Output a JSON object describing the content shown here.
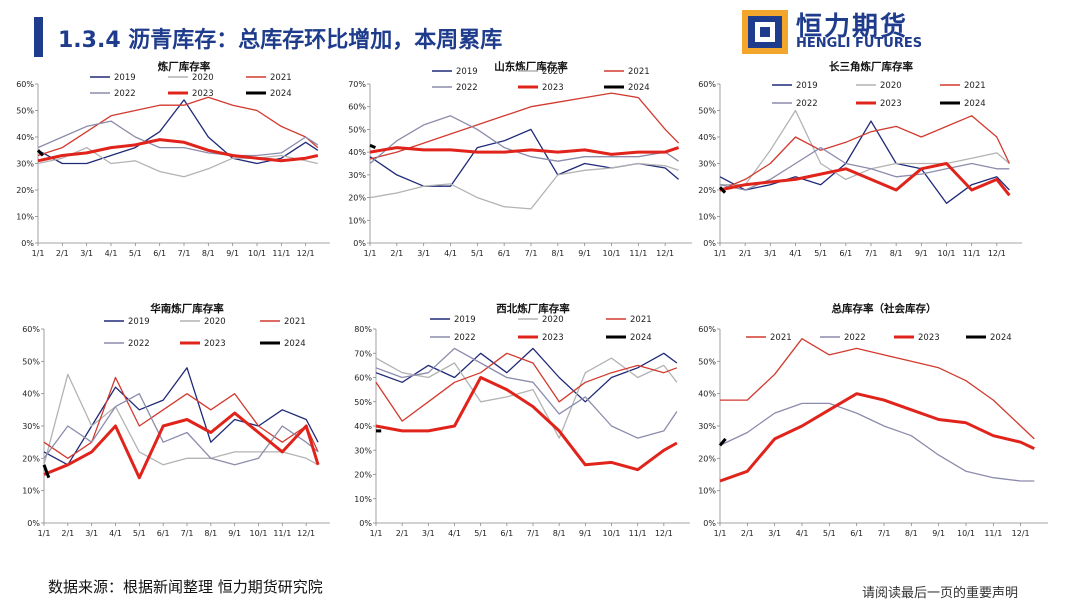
{
  "header": {
    "title": "1.3.4 沥青库存：总库存环比增加，本周累库"
  },
  "brand": {
    "name_cn": "恒力期货",
    "name_en": "HENGLI FUTURES",
    "primary_color": "#1f3c8c",
    "accent_color": "#f2a62c"
  },
  "footer": {
    "source": "数据来源：根据新闻整理 恒力期货研究院",
    "note": "请阅读最后一页的重要声明"
  },
  "series_colors": {
    "2019": "#1f2a78",
    "2020": "#b3b3b3",
    "2021": "#d23a2f",
    "2022": "#8c8cac",
    "2023": "#e0241b",
    "2024": "#000000"
  },
  "chart_data": [
    {
      "type": "line",
      "title": "炼厂库存率",
      "xticks": [
        "1/1",
        "2/1",
        "3/1",
        "4/1",
        "5/1",
        "6/1",
        "7/1",
        "8/1",
        "9/1",
        "10/1",
        "11/1",
        "12/1"
      ],
      "ylim": [
        0,
        60
      ],
      "yticks": [
        0,
        10,
        20,
        30,
        40,
        50,
        60
      ],
      "yunit": "%",
      "series": [
        {
          "name": "2019",
          "x": [
            1,
            2,
            3,
            4,
            5,
            6,
            7,
            8,
            9,
            10,
            11,
            12,
            12.5
          ],
          "values": [
            35,
            30,
            30,
            33,
            36,
            42,
            54,
            40,
            32,
            30,
            32,
            38,
            35
          ]
        },
        {
          "name": "2020",
          "x": [
            1,
            2,
            3,
            4,
            5,
            6,
            7,
            8,
            9,
            10,
            11,
            12,
            12.5
          ],
          "values": [
            30,
            32,
            36,
            30,
            31,
            27,
            25,
            28,
            32,
            32,
            33,
            31,
            30
          ]
        },
        {
          "name": "2021",
          "x": [
            1,
            2,
            3,
            4,
            5,
            6,
            7,
            8,
            9,
            10,
            11,
            12,
            12.5
          ],
          "values": [
            33,
            36,
            42,
            48,
            50,
            52,
            52,
            55,
            52,
            50,
            44,
            40,
            36
          ]
        },
        {
          "name": "2022",
          "x": [
            1,
            2,
            3,
            4,
            5,
            6,
            7,
            8,
            9,
            10,
            11,
            12,
            12.5
          ],
          "values": [
            36,
            40,
            44,
            46,
            40,
            36,
            36,
            34,
            33,
            33,
            34,
            40,
            37
          ]
        },
        {
          "name": "2023",
          "x": [
            1,
            2,
            3,
            4,
            5,
            6,
            7,
            8,
            9,
            10,
            11,
            12,
            12.5
          ],
          "values": [
            31,
            33,
            34,
            36,
            37,
            39,
            38,
            35,
            33,
            32,
            31,
            32,
            33
          ]
        },
        {
          "name": "2024",
          "x": [
            1,
            1.2
          ],
          "values": [
            35,
            33
          ]
        }
      ]
    },
    {
      "type": "line",
      "title": "山东炼厂库存率",
      "xticks": [
        "1/1",
        "2/1",
        "3/1",
        "4/1",
        "5/1",
        "6/1",
        "7/1",
        "8/1",
        "9/1",
        "10/1",
        "11/1",
        "12/1"
      ],
      "ylim": [
        0,
        70
      ],
      "yticks": [
        0,
        10,
        20,
        30,
        40,
        50,
        60,
        70
      ],
      "yunit": "%",
      "series": [
        {
          "name": "2019",
          "x": [
            1,
            2,
            3,
            4,
            5,
            6,
            7,
            8,
            9,
            10,
            11,
            12,
            12.5
          ],
          "values": [
            38,
            30,
            25,
            25,
            42,
            45,
            50,
            30,
            35,
            33,
            35,
            33,
            28
          ]
        },
        {
          "name": "2020",
          "x": [
            1,
            2,
            3,
            4,
            5,
            6,
            7,
            8,
            9,
            10,
            11,
            12,
            12.5
          ],
          "values": [
            20,
            22,
            25,
            26,
            20,
            16,
            15,
            30,
            32,
            33,
            35,
            34,
            32
          ]
        },
        {
          "name": "2021",
          "x": [
            1,
            2,
            3,
            4,
            5,
            6,
            7,
            8,
            9,
            10,
            11,
            12,
            12.5
          ],
          "values": [
            37,
            40,
            44,
            48,
            52,
            56,
            60,
            62,
            64,
            66,
            64,
            50,
            44
          ]
        },
        {
          "name": "2022",
          "x": [
            1,
            2,
            3,
            4,
            5,
            6,
            7,
            8,
            9,
            10,
            11,
            12,
            12.5
          ],
          "values": [
            35,
            45,
            52,
            56,
            50,
            42,
            38,
            36,
            38,
            38,
            38,
            40,
            36
          ]
        },
        {
          "name": "2023",
          "x": [
            1,
            2,
            3,
            4,
            5,
            6,
            7,
            8,
            9,
            10,
            11,
            12,
            12.5
          ],
          "values": [
            40,
            42,
            41,
            41,
            40,
            40,
            41,
            40,
            41,
            39,
            40,
            40,
            42
          ]
        },
        {
          "name": "2024",
          "x": [
            1,
            1.2
          ],
          "values": [
            43,
            42
          ]
        }
      ]
    },
    {
      "type": "line",
      "title": "长三角炼厂库存率",
      "xticks": [
        "1/1",
        "2/1",
        "3/1",
        "4/1",
        "5/1",
        "6/1",
        "7/1",
        "8/1",
        "9/1",
        "10/1",
        "11/1",
        "12/1"
      ],
      "ylim": [
        0,
        60
      ],
      "yticks": [
        0,
        10,
        20,
        30,
        40,
        50,
        60
      ],
      "yunit": "%",
      "series": [
        {
          "name": "2019",
          "x": [
            1,
            2,
            3,
            4,
            5,
            6,
            7,
            8,
            9,
            10,
            11,
            12,
            12.5
          ],
          "values": [
            25,
            20,
            22,
            25,
            22,
            30,
            46,
            30,
            28,
            15,
            22,
            25,
            20
          ]
        },
        {
          "name": "2020",
          "x": [
            1,
            2,
            3,
            4,
            5,
            6,
            7,
            8,
            9,
            10,
            11,
            12,
            12.5
          ],
          "values": [
            22,
            22,
            35,
            50,
            30,
            24,
            28,
            30,
            30,
            30,
            32,
            34,
            30
          ]
        },
        {
          "name": "2021",
          "x": [
            1,
            2,
            3,
            4,
            5,
            6,
            7,
            8,
            9,
            10,
            11,
            12,
            12.5
          ],
          "values": [
            20,
            24,
            30,
            40,
            35,
            38,
            42,
            44,
            40,
            44,
            48,
            40,
            30
          ]
        },
        {
          "name": "2022",
          "x": [
            1,
            2,
            3,
            4,
            5,
            6,
            7,
            8,
            9,
            10,
            11,
            12,
            12.5
          ],
          "values": [
            22,
            20,
            24,
            30,
            36,
            30,
            28,
            25,
            26,
            28,
            30,
            28,
            28
          ]
        },
        {
          "name": "2023",
          "x": [
            1,
            2,
            3,
            4,
            5,
            6,
            7,
            8,
            9,
            10,
            11,
            12,
            12.5
          ],
          "values": [
            20,
            22,
            23,
            24,
            26,
            28,
            24,
            20,
            28,
            30,
            20,
            24,
            18
          ]
        },
        {
          "name": "2024",
          "x": [
            1,
            1.2
          ],
          "values": [
            21,
            19
          ]
        }
      ]
    },
    {
      "type": "line",
      "title": "华南炼厂库存率",
      "xticks": [
        "1/1",
        "2/1",
        "3/1",
        "4/1",
        "5/1",
        "6/1",
        "7/1",
        "8/1",
        "9/1",
        "10/1",
        "11/1",
        "12/1"
      ],
      "ylim": [
        0,
        60
      ],
      "yticks": [
        0,
        10,
        20,
        30,
        40,
        50,
        60
      ],
      "yunit": "%",
      "series": [
        {
          "name": "2019",
          "x": [
            1,
            2,
            3,
            4,
            5,
            6,
            7,
            8,
            9,
            10,
            11,
            12,
            12.5
          ],
          "values": [
            22,
            18,
            30,
            42,
            35,
            38,
            48,
            25,
            32,
            30,
            35,
            32,
            25
          ]
        },
        {
          "name": "2020",
          "x": [
            1,
            2,
            3,
            4,
            5,
            6,
            7,
            8,
            9,
            10,
            11,
            12,
            12.5
          ],
          "values": [
            18,
            46,
            30,
            36,
            22,
            18,
            20,
            20,
            22,
            22,
            22,
            20,
            18
          ]
        },
        {
          "name": "2021",
          "x": [
            1,
            2,
            3,
            4,
            5,
            6,
            7,
            8,
            9,
            10,
            11,
            12,
            12.5
          ],
          "values": [
            25,
            20,
            25,
            45,
            30,
            35,
            40,
            35,
            40,
            30,
            25,
            30,
            22
          ]
        },
        {
          "name": "2022",
          "x": [
            1,
            2,
            3,
            4,
            5,
            6,
            7,
            8,
            9,
            10,
            11,
            12,
            12.5
          ],
          "values": [
            20,
            30,
            25,
            36,
            40,
            25,
            28,
            20,
            18,
            20,
            30,
            25,
            22
          ]
        },
        {
          "name": "2023",
          "x": [
            1,
            2,
            3,
            4,
            5,
            6,
            7,
            8,
            9,
            10,
            11,
            12,
            12.5
          ],
          "values": [
            15,
            18,
            22,
            30,
            14,
            30,
            32,
            28,
            34,
            28,
            22,
            30,
            18
          ]
        },
        {
          "name": "2024",
          "x": [
            1,
            1.2
          ],
          "values": [
            18,
            14
          ]
        }
      ]
    },
    {
      "type": "line",
      "title": "西北炼厂库存率",
      "xticks": [
        "1/1",
        "2/1",
        "3/1",
        "4/1",
        "5/1",
        "6/1",
        "7/1",
        "8/1",
        "9/1",
        "10/1",
        "11/1",
        "12/1"
      ],
      "ylim": [
        0,
        80
      ],
      "yticks": [
        0,
        10,
        20,
        30,
        40,
        50,
        60,
        70,
        80
      ],
      "yunit": "%",
      "series": [
        {
          "name": "2019",
          "x": [
            1,
            2,
            3,
            4,
            5,
            6,
            7,
            8,
            9,
            10,
            11,
            12,
            12.5
          ],
          "values": [
            62,
            58,
            65,
            60,
            70,
            62,
            72,
            60,
            50,
            60,
            64,
            70,
            66
          ]
        },
        {
          "name": "2020",
          "x": [
            1,
            2,
            3,
            4,
            5,
            6,
            7,
            8,
            9,
            10,
            11,
            12,
            12.5
          ],
          "values": [
            68,
            62,
            60,
            66,
            50,
            52,
            55,
            35,
            62,
            68,
            60,
            65,
            58
          ]
        },
        {
          "name": "2021",
          "x": [
            1,
            2,
            3,
            4,
            5,
            6,
            7,
            8,
            9,
            10,
            11,
            12,
            12.5
          ],
          "values": [
            58,
            42,
            50,
            58,
            62,
            70,
            66,
            50,
            58,
            62,
            65,
            62,
            64
          ]
        },
        {
          "name": "2022",
          "x": [
            1,
            2,
            3,
            4,
            5,
            6,
            7,
            8,
            9,
            10,
            11,
            12,
            12.5
          ],
          "values": [
            64,
            60,
            62,
            72,
            66,
            60,
            58,
            45,
            52,
            40,
            35,
            38,
            46
          ]
        },
        {
          "name": "2023",
          "x": [
            1,
            2,
            3,
            4,
            5,
            6,
            7,
            8,
            9,
            10,
            11,
            12,
            12.5
          ],
          "values": [
            40,
            38,
            38,
            40,
            60,
            55,
            48,
            38,
            24,
            25,
            22,
            30,
            33
          ]
        },
        {
          "name": "2024",
          "x": [
            1,
            1.2
          ],
          "values": [
            38,
            38
          ]
        }
      ]
    },
    {
      "type": "line",
      "title": "总库存率（社会库存）",
      "xticks": [
        "1/1",
        "2/1",
        "3/1",
        "4/1",
        "5/1",
        "6/1",
        "7/1",
        "8/1",
        "9/1",
        "10/1",
        "11/1",
        "12/1"
      ],
      "ylim": [
        0,
        60
      ],
      "yticks": [
        0,
        10,
        20,
        30,
        40,
        50,
        60
      ],
      "yunit": "%",
      "series": [
        {
          "name": "2021",
          "x": [
            1,
            2,
            3,
            4,
            5,
            6,
            7,
            8,
            9,
            10,
            11,
            12,
            12.5
          ],
          "values": [
            38,
            38,
            46,
            57,
            52,
            54,
            52,
            50,
            48,
            44,
            38,
            30,
            26
          ]
        },
        {
          "name": "2022",
          "x": [
            1,
            2,
            3,
            4,
            5,
            6,
            7,
            8,
            9,
            10,
            11,
            12,
            12.5
          ],
          "values": [
            24,
            28,
            34,
            37,
            37,
            34,
            30,
            27,
            21,
            16,
            14,
            13,
            13
          ]
        },
        {
          "name": "2023",
          "x": [
            1,
            2,
            3,
            4,
            5,
            6,
            7,
            8,
            9,
            10,
            11,
            12,
            12.5
          ],
          "values": [
            13,
            16,
            26,
            30,
            35,
            40,
            38,
            35,
            32,
            31,
            27,
            25,
            23
          ]
        },
        {
          "name": "2024",
          "x": [
            1,
            1.2
          ],
          "values": [
            24,
            26
          ]
        }
      ]
    }
  ]
}
